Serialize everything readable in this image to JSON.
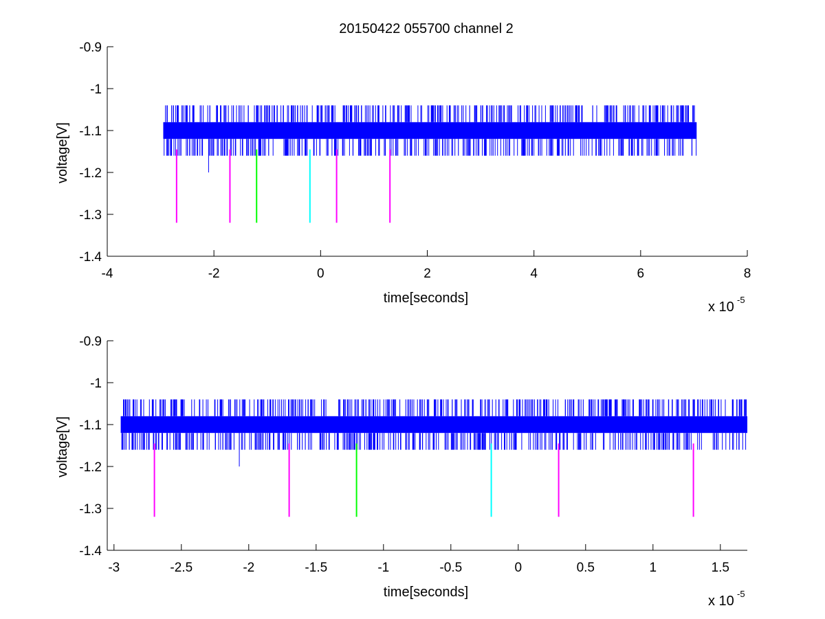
{
  "figure_title": "20150422 055700 channel 2",
  "chart_data": [
    {
      "type": "line",
      "title": "20150422 055700 channel 2",
      "xlabel": "time[seconds]",
      "ylabel": "voltage[V]",
      "x_multiplier_base": "x 10",
      "x_multiplier_exp": "-5",
      "xlim": [
        -4e-05,
        8e-05
      ],
      "ylim": [
        -1.4,
        -0.9
      ],
      "xticks": [
        -4e-05,
        -2e-05,
        0,
        2e-05,
        4e-05,
        6e-05,
        8e-05
      ],
      "xtick_labels": [
        "-4",
        "-2",
        "0",
        "2",
        "4",
        "6",
        "8"
      ],
      "yticks": [
        -1.4,
        -1.3,
        -1.2,
        -1.1,
        -1,
        -0.9
      ],
      "ytick_labels": [
        "-1.4",
        "-1.3",
        "-1.2",
        "-1.1",
        "-1",
        "-0.9"
      ],
      "grid": false,
      "signal": {
        "color": "#0000ff",
        "x_start": -2.95e-05,
        "x_end": 7.05e-05,
        "baseline_low": -1.12,
        "baseline_high": -1.08,
        "spike_high": -1.04,
        "spike_low": -1.16,
        "outlier": {
          "x": -2.1e-05,
          "y": -1.2
        }
      },
      "markers": [
        {
          "x": -2.7e-05,
          "y_top": -1.145,
          "y_bottom": -1.32,
          "color": "#ff00ff"
        },
        {
          "x": -1.7e-05,
          "y_top": -1.145,
          "y_bottom": -1.32,
          "color": "#ff00ff"
        },
        {
          "x": -1.2e-05,
          "y_top": -1.145,
          "y_bottom": -1.32,
          "color": "#00ff00"
        },
        {
          "x": -2e-06,
          "y_top": -1.145,
          "y_bottom": -1.32,
          "color": "#00ffff"
        },
        {
          "x": 3e-06,
          "y_top": -1.145,
          "y_bottom": -1.32,
          "color": "#ff00ff"
        },
        {
          "x": 1.3e-05,
          "y_top": -1.145,
          "y_bottom": -1.32,
          "color": "#ff00ff"
        }
      ]
    },
    {
      "type": "line",
      "title": "",
      "xlabel": "time[seconds]",
      "ylabel": "voltage[V]",
      "x_multiplier_base": "x 10",
      "x_multiplier_exp": "-5",
      "xlim": [
        -3.05e-05,
        1.7e-05
      ],
      "ylim": [
        -1.4,
        -0.9
      ],
      "xticks": [
        -3e-05,
        -2.5e-05,
        -2e-05,
        -1.5e-05,
        -1e-05,
        -5e-06,
        0,
        5e-06,
        1e-05,
        1.5e-05
      ],
      "xtick_labels": [
        "-3",
        "-2.5",
        "-2",
        "-1.5",
        "-1",
        "-0.5",
        "0",
        "0.5",
        "1",
        "1.5"
      ],
      "yticks": [
        -1.4,
        -1.3,
        -1.2,
        -1.1,
        -1,
        -0.9
      ],
      "ytick_labels": [
        "-1.4",
        "-1.3",
        "-1.2",
        "-1.1",
        "-1",
        "-0.9"
      ],
      "grid": false,
      "signal": {
        "color": "#0000ff",
        "x_start": -2.95e-05,
        "x_end": 1.7e-05,
        "baseline_low": -1.12,
        "baseline_high": -1.08,
        "spike_high": -1.04,
        "spike_low": -1.16,
        "outlier": {
          "x": -2.07e-05,
          "y": -1.2
        }
      },
      "markers": [
        {
          "x": -2.7e-05,
          "y_top": -1.145,
          "y_bottom": -1.32,
          "color": "#ff00ff"
        },
        {
          "x": -1.7e-05,
          "y_top": -1.145,
          "y_bottom": -1.32,
          "color": "#ff00ff"
        },
        {
          "x": -1.2e-05,
          "y_top": -1.145,
          "y_bottom": -1.32,
          "color": "#00ff00"
        },
        {
          "x": -2e-06,
          "y_top": -1.145,
          "y_bottom": -1.32,
          "color": "#00ffff"
        },
        {
          "x": 3e-06,
          "y_top": -1.145,
          "y_bottom": -1.32,
          "color": "#ff00ff"
        },
        {
          "x": 1.3e-05,
          "y_top": -1.145,
          "y_bottom": -1.32,
          "color": "#ff00ff"
        }
      ]
    }
  ]
}
